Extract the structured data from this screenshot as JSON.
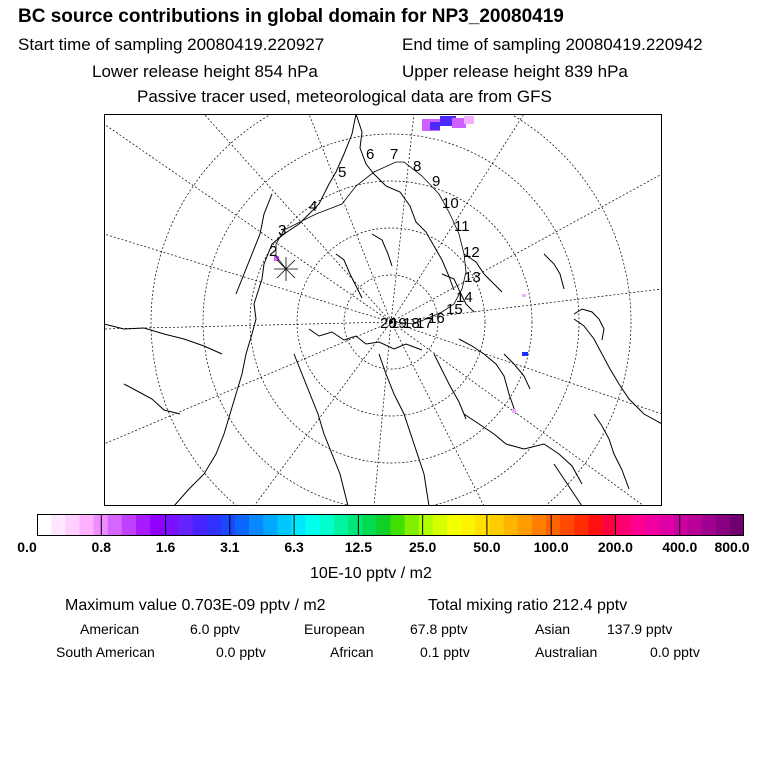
{
  "header": {
    "title": "BC  source contributions in global domain for NP3_20080419",
    "start_time": "Start time of sampling 20080419.220927",
    "end_time": "End time of sampling 20080419.220942",
    "lower_height": "Lower release height  854 hPa",
    "upper_height": "Upper release height  839 hPa",
    "tracer_note": "Passive tracer used, meteorological data are from GFS"
  },
  "map": {
    "trajectory_labels": [
      "2",
      "3",
      "4",
      "5",
      "6",
      "7",
      "8",
      "9",
      "10",
      "11",
      "12",
      "13",
      "14",
      "15",
      "16",
      "17",
      "18",
      "19",
      "20"
    ],
    "colors": {
      "coast": "#000000",
      "grid": "#000000",
      "plume_dark": "#4d2bff",
      "plume_light": "#d060ff"
    }
  },
  "colorbar": {
    "ticks": [
      "0.0",
      "0.8",
      "1.6",
      "3.1",
      "6.3",
      "12.5",
      "25.0",
      "50.0",
      "100.0",
      "200.0",
      "400.0",
      "800.0"
    ],
    "colors": [
      "#ffffff",
      "#ffe8ff",
      "#ffd0ff",
      "#ffb0ff",
      "#f08cff",
      "#d666ff",
      "#c040ff",
      "#a81aff",
      "#9000ff",
      "#7a10ff",
      "#6622ff",
      "#4a22ff",
      "#3030ff",
      "#1a48ff",
      "#0a66ff",
      "#0a88ff",
      "#00a8ff",
      "#00c8ff",
      "#00e8ff",
      "#00ffee",
      "#00ffcc",
      "#00f4a0",
      "#00e878",
      "#00dc50",
      "#10d028",
      "#40e000",
      "#80f000",
      "#b0ff00",
      "#d8ff00",
      "#f4ff00",
      "#fff400",
      "#ffe000",
      "#ffcc00",
      "#ffb400",
      "#ff9c00",
      "#ff8000",
      "#ff6400",
      "#ff4800",
      "#ff2c00",
      "#ff1010",
      "#ff0040",
      "#ff0070",
      "#ff0090",
      "#f000a0",
      "#e000a8",
      "#cc00a0",
      "#b80098",
      "#a00090",
      "#880080",
      "#700070"
    ],
    "units": "10E-10 pptv / m2"
  },
  "summary": {
    "max_value": "Maximum value  0.703E-09 pptv / m2",
    "total_ratio": "Total mixing ratio     212.4 pptv",
    "sources": [
      {
        "label": "American",
        "value": "6.0 pptv"
      },
      {
        "label": "European",
        "value": "67.8 pptv"
      },
      {
        "label": "Asian",
        "value": "137.9 pptv"
      },
      {
        "label": "South American",
        "value": "0.0 pptv"
      },
      {
        "label": "African",
        "value": "0.1 pptv"
      },
      {
        "label": "Australian",
        "value": "0.0 pptv"
      }
    ]
  }
}
